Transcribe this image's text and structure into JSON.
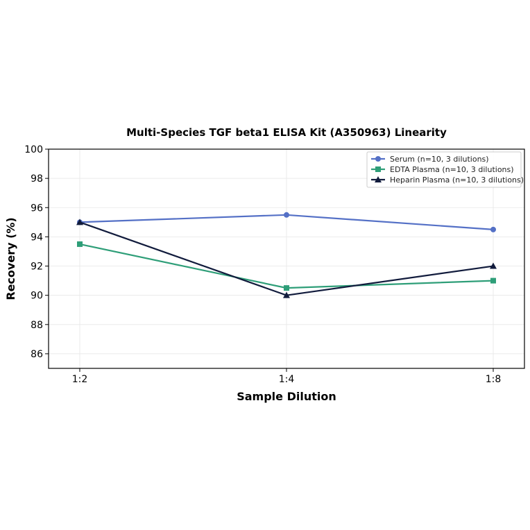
{
  "chart_data": {
    "type": "line",
    "title": "Multi-Species TGF beta1 ELISA Kit (A350963) Linearity",
    "xlabel": "Sample Dilution",
    "ylabel": "Recovery (%)",
    "categories": [
      "1:2",
      "1:4",
      "1:8"
    ],
    "ylim": [
      85,
      100
    ],
    "yticks": [
      86,
      88,
      90,
      92,
      94,
      96,
      98,
      100
    ],
    "grid": true,
    "legend_position": "top-right",
    "series": [
      {
        "name": "Serum (n=10, 3 dilutions)",
        "values": [
          95.0,
          95.5,
          94.5
        ],
        "color": "#5470c6",
        "marker": "circle"
      },
      {
        "name": "EDTA Plasma (n=10, 3 dilutions)",
        "values": [
          93.5,
          90.5,
          91.0
        ],
        "color": "#2e9e78",
        "marker": "square"
      },
      {
        "name": "Heparin Plasma (n=10, 3 dilutions)",
        "values": [
          95.0,
          90.0,
          92.0
        ],
        "color": "#111b3c",
        "marker": "triangle"
      }
    ]
  }
}
